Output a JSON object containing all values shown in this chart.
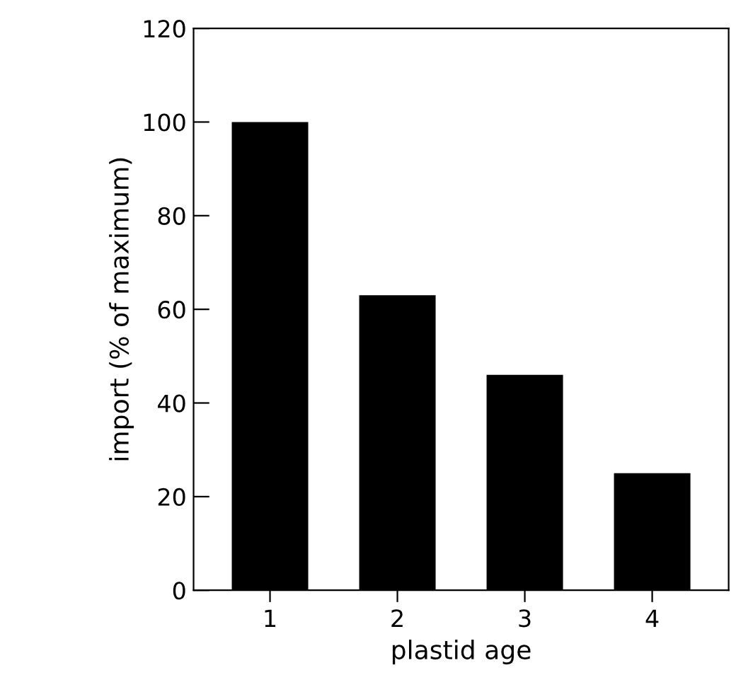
{
  "chart_data": {
    "type": "bar",
    "xlabel": "plastid age",
    "ylabel": "import (% of maximum)",
    "categories": [
      "1",
      "2",
      "3",
      "4"
    ],
    "values": [
      100,
      63,
      46,
      25
    ],
    "color": "#000000",
    "ylim": [
      0,
      120
    ],
    "yticks": [
      0,
      20,
      40,
      60,
      80,
      100,
      120
    ],
    "grid": false
  }
}
